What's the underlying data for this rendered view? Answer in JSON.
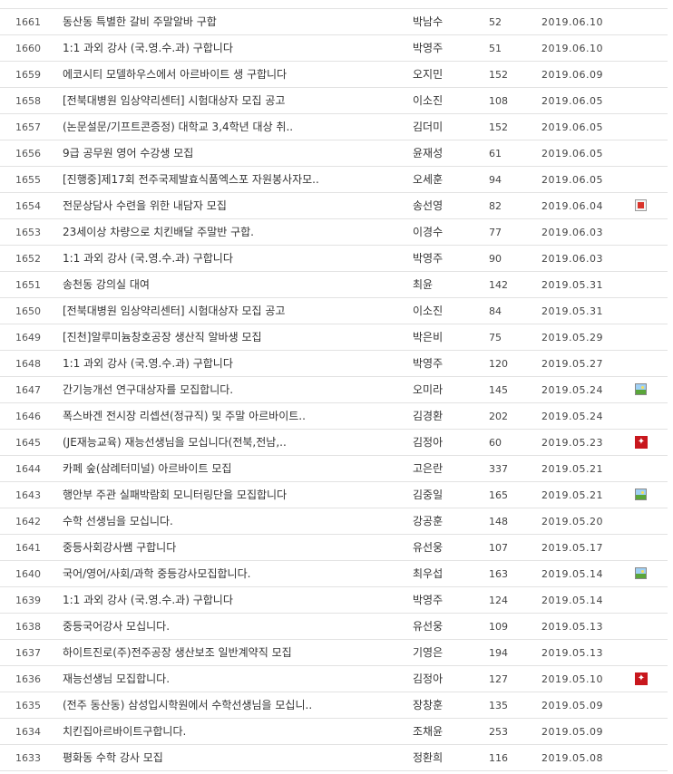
{
  "rows": [
    {
      "no": "1661",
      "title": "동산동 특별한 갈비 주말알바 구합",
      "author": "박남수",
      "hits": "52",
      "date": "2019.06.10",
      "attachment": ""
    },
    {
      "no": "1660",
      "title": "1:1 과외 강사 (국.영.수.과) 구합니다",
      "author": "박영주",
      "hits": "51",
      "date": "2019.06.10",
      "attachment": ""
    },
    {
      "no": "1659",
      "title": "에코시티 모델하우스에서 아르바이트 생 구합니다",
      "author": "오지민",
      "hits": "152",
      "date": "2019.06.09",
      "attachment": ""
    },
    {
      "no": "1658",
      "title": "[전북대병원 임상약리센터] 시험대상자 모집 공고",
      "author": "이소진",
      "hits": "108",
      "date": "2019.06.05",
      "attachment": ""
    },
    {
      "no": "1657",
      "title": "(논문설문/기프트콘증정) 대학교 3,4학년 대상 취..",
      "author": "김더미",
      "hits": "152",
      "date": "2019.06.05",
      "attachment": ""
    },
    {
      "no": "1656",
      "title": "9급 공무원 영어 수강생 모집",
      "author": "윤재성",
      "hits": "61",
      "date": "2019.06.05",
      "attachment": ""
    },
    {
      "no": "1655",
      "title": "[진행중]제17회 전주국제발효식품엑스포 자원봉사자모..",
      "author": "오세훈",
      "hits": "94",
      "date": "2019.06.05",
      "attachment": ""
    },
    {
      "no": "1654",
      "title": "전문상담사 수련을 위한 내담자 모집",
      "author": "송선영",
      "hits": "82",
      "date": "2019.06.04",
      "attachment": "hwp"
    },
    {
      "no": "1653",
      "title": "23세이상 차량으로 치킨배달 주말반 구합.",
      "author": "이경수",
      "hits": "77",
      "date": "2019.06.03",
      "attachment": ""
    },
    {
      "no": "1652",
      "title": "1:1 과외 강사 (국.영.수.과) 구합니다",
      "author": "박영주",
      "hits": "90",
      "date": "2019.06.03",
      "attachment": ""
    },
    {
      "no": "1651",
      "title": "송천동 강의실 대여",
      "author": "최윤",
      "hits": "142",
      "date": "2019.05.31",
      "attachment": ""
    },
    {
      "no": "1650",
      "title": "[전북대병원 임상약리센터] 시험대상자 모집 공고",
      "author": "이소진",
      "hits": "84",
      "date": "2019.05.31",
      "attachment": ""
    },
    {
      "no": "1649",
      "title": "[진천]알루미늄창호공장 생산직 알바생 모집",
      "author": "박은비",
      "hits": "75",
      "date": "2019.05.29",
      "attachment": ""
    },
    {
      "no": "1648",
      "title": "1:1 과외 강사 (국.영.수.과) 구합니다",
      "author": "박영주",
      "hits": "120",
      "date": "2019.05.27",
      "attachment": ""
    },
    {
      "no": "1647",
      "title": "간기능개선 연구대상자를 모집합니다.",
      "author": "오미라",
      "hits": "145",
      "date": "2019.05.24",
      "attachment": "image"
    },
    {
      "no": "1646",
      "title": "폭스바겐 전시장 리셉션(정규직) 및 주말 아르바이트..",
      "author": "김경환",
      "hits": "202",
      "date": "2019.05.24",
      "attachment": ""
    },
    {
      "no": "1645",
      "title": "(JE재능교육) 재능선생님을 모십니다(전북,전남,..",
      "author": "김정아",
      "hits": "60",
      "date": "2019.05.23",
      "attachment": "pdf"
    },
    {
      "no": "1644",
      "title": "카페 숲(삼례터미널) 아르바이트 모집",
      "author": "고은란",
      "hits": "337",
      "date": "2019.05.21",
      "attachment": ""
    },
    {
      "no": "1643",
      "title": "행안부 주관 실패박람회 모니터링단을 모집합니다",
      "author": "김중일",
      "hits": "165",
      "date": "2019.05.21",
      "attachment": "image"
    },
    {
      "no": "1642",
      "title": "수학 선생님을 모십니다.",
      "author": "강공훈",
      "hits": "148",
      "date": "2019.05.20",
      "attachment": ""
    },
    {
      "no": "1641",
      "title": "중등사회강사쌤 구합니다",
      "author": "유선웅",
      "hits": "107",
      "date": "2019.05.17",
      "attachment": ""
    },
    {
      "no": "1640",
      "title": "국어/영어/사회/과학 중등강사모집합니다.",
      "author": "최우섭",
      "hits": "163",
      "date": "2019.05.14",
      "attachment": "image"
    },
    {
      "no": "1639",
      "title": "1:1 과외 강사 (국.영.수.과) 구합니다",
      "author": "박영주",
      "hits": "124",
      "date": "2019.05.14",
      "attachment": ""
    },
    {
      "no": "1638",
      "title": "중등국어강사 모십니다.",
      "author": "유선웅",
      "hits": "109",
      "date": "2019.05.13",
      "attachment": ""
    },
    {
      "no": "1637",
      "title": "하이트진로(주)전주공장 생산보조 일반계약직 모집",
      "author": "기영은",
      "hits": "194",
      "date": "2019.05.13",
      "attachment": ""
    },
    {
      "no": "1636",
      "title": "재능선생님 모집합니다.",
      "author": "김정아",
      "hits": "127",
      "date": "2019.05.10",
      "attachment": "pdf"
    },
    {
      "no": "1635",
      "title": "(전주 동산동) 삼성입시학원에서 수학선생님을 모십니..",
      "author": "장창훈",
      "hits": "135",
      "date": "2019.05.09",
      "attachment": ""
    },
    {
      "no": "1634",
      "title": "치킨집아르바이트구합니다.",
      "author": "조채윤",
      "hits": "253",
      "date": "2019.05.09",
      "attachment": ""
    },
    {
      "no": "1633",
      "title": "평화동 수학 강사 모집",
      "author": "정환희",
      "hits": "116",
      "date": "2019.05.08",
      "attachment": ""
    }
  ],
  "icons": {
    "hwp": "hwp-file-icon",
    "image": "image-file-icon",
    "pdf": "pdf-file-icon"
  },
  "colors": {
    "text": "#333333",
    "divider": "#e2e2e2",
    "pdf": "#c8171d"
  }
}
